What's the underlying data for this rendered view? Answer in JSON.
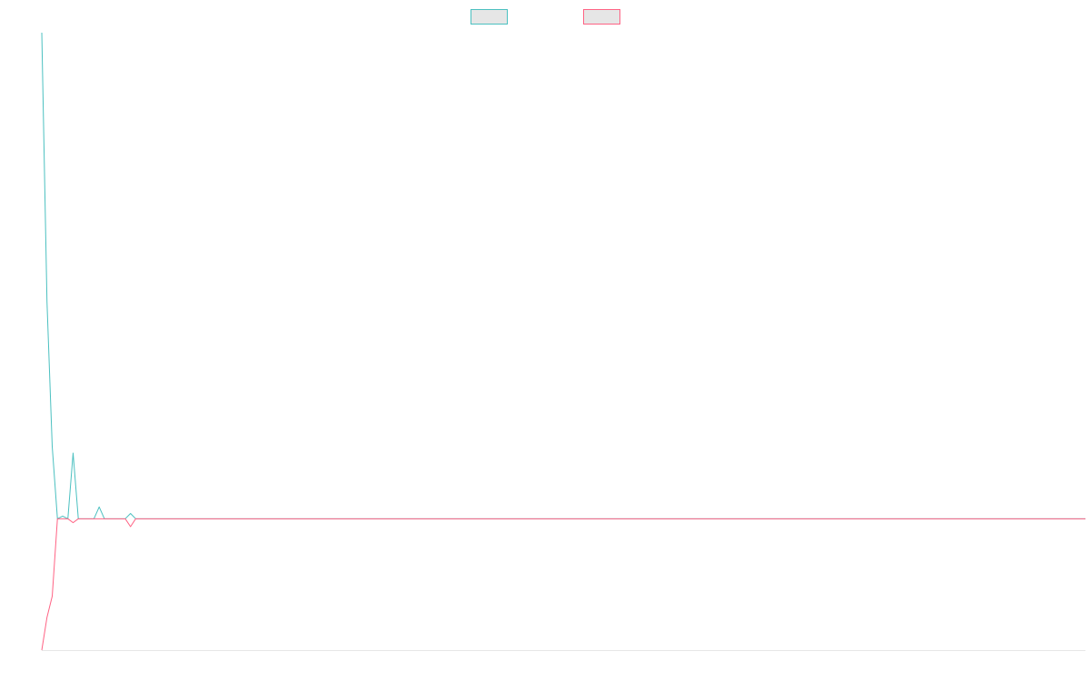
{
  "chart_data": {
    "type": "line",
    "title": "",
    "xlabel": "",
    "ylabel": "",
    "grid": false,
    "legend": {
      "placement": "top-center",
      "entries": [
        {
          "label": "",
          "color": "#4bc0c0"
        },
        {
          "label": "",
          "color": "#ff6384"
        }
      ]
    },
    "x": [
      0,
      1,
      2,
      3,
      4,
      5,
      6,
      7,
      8,
      9,
      10,
      11,
      12,
      13,
      14,
      15,
      16,
      17,
      18,
      19,
      20
    ],
    "xlim": [
      0,
      200
    ],
    "ylim": [
      -100,
      370
    ],
    "series": [
      {
        "color": "#4bc0c0",
        "values": [
          370,
          165,
          55,
          0,
          2,
          0,
          50,
          0,
          0,
          0,
          0,
          9,
          0,
          0,
          0,
          0,
          0,
          4,
          0,
          0,
          0
        ]
      },
      {
        "color": "#ff6384",
        "values": [
          -100,
          -75,
          -59,
          0,
          0,
          0,
          -3,
          0,
          0,
          0,
          0,
          0,
          0,
          0,
          0,
          0,
          0,
          -6,
          0,
          0,
          0
        ]
      }
    ]
  }
}
